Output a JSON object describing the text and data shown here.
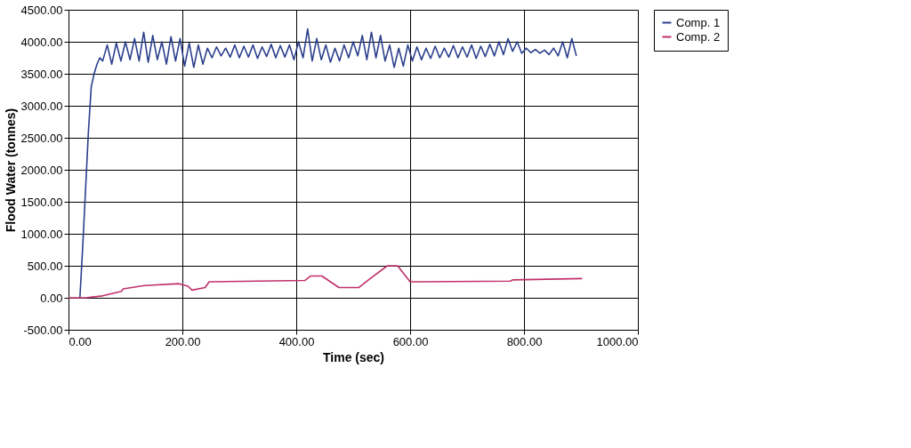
{
  "chart_data": {
    "type": "line",
    "xlabel": "Time (sec)",
    "ylabel": "Flood Water (tonnes)",
    "xlim": [
      0,
      1000
    ],
    "ylim": [
      -500,
      4500
    ],
    "xticks": [
      {
        "value": 0,
        "label": "0.00"
      },
      {
        "value": 200,
        "label": "200.00"
      },
      {
        "value": 400,
        "label": "400.00"
      },
      {
        "value": 600,
        "label": "600.00"
      },
      {
        "value": 800,
        "label": "800.00"
      },
      {
        "value": 1000,
        "label": "1000.00"
      }
    ],
    "yticks": [
      {
        "value": -500,
        "label": "-500.00"
      },
      {
        "value": 0,
        "label": "0.00"
      },
      {
        "value": 500,
        "label": "500.00"
      },
      {
        "value": 1000,
        "label": "1000.00"
      },
      {
        "value": 1500,
        "label": "1500.00"
      },
      {
        "value": 2000,
        "label": "2000.00"
      },
      {
        "value": 2500,
        "label": "2500.00"
      },
      {
        "value": 3000,
        "label": "3000.00"
      },
      {
        "value": 3500,
        "label": "3500.00"
      },
      {
        "value": 4000,
        "label": "4000.00"
      },
      {
        "value": 4500,
        "label": "4500.00"
      }
    ],
    "grid": true,
    "legend": "right",
    "marker": "none",
    "line_style": "solid",
    "series": [
      {
        "name": "Comp. 1",
        "color": "#2b3f8c",
        "x": [
          20,
          25,
          30,
          35,
          40,
          45,
          50,
          55,
          60,
          68,
          76,
          84,
          92,
          100,
          108,
          116,
          124,
          132,
          140,
          148,
          156,
          164,
          172,
          180,
          188,
          196,
          204,
          212,
          220,
          228,
          236,
          244,
          252,
          260,
          268,
          276,
          284,
          292,
          300,
          308,
          316,
          324,
          332,
          340,
          348,
          356,
          364,
          372,
          380,
          388,
          396,
          404,
          412,
          420,
          428,
          436,
          444,
          452,
          460,
          468,
          476,
          484,
          492,
          500,
          508,
          516,
          524,
          532,
          540,
          548,
          556,
          564,
          572,
          580,
          588,
          596,
          604,
          612,
          620,
          628,
          636,
          644,
          652,
          660,
          668,
          676,
          684,
          692,
          700,
          708,
          716,
          724,
          732,
          740,
          748,
          756,
          764,
          772,
          780,
          788,
          796,
          804,
          812,
          820,
          828,
          836,
          844,
          852,
          860,
          868,
          876,
          884,
          892
        ],
        "values": [
          0,
          800,
          1700,
          2600,
          3300,
          3500,
          3650,
          3750,
          3700,
          3950,
          3650,
          3980,
          3700,
          4000,
          3720,
          4050,
          3700,
          4150,
          3680,
          4100,
          3720,
          4000,
          3650,
          4080,
          3700,
          4050,
          3620,
          3980,
          3600,
          3950,
          3650,
          3900,
          3750,
          3920,
          3780,
          3900,
          3760,
          3950,
          3750,
          3930,
          3760,
          3950,
          3740,
          3920,
          3770,
          3960,
          3750,
          3940,
          3760,
          3950,
          3720,
          4000,
          3750,
          4200,
          3700,
          4050,
          3720,
          3950,
          3680,
          3900,
          3700,
          3950,
          3750,
          4000,
          3780,
          4100,
          3720,
          4150,
          3750,
          4100,
          3700,
          3950,
          3600,
          3900,
          3620,
          3950,
          3700,
          3920,
          3720,
          3900,
          3740,
          3930,
          3750,
          3900,
          3760,
          3940,
          3750,
          3920,
          3760,
          3950,
          3740,
          3930,
          3770,
          3960,
          3780,
          4000,
          3800,
          4050,
          3850,
          4000,
          3820,
          3900,
          3830,
          3880,
          3820,
          3870,
          3800,
          3900,
          3780,
          4000,
          3750,
          4050,
          3780
        ]
      },
      {
        "name": "Comp. 2",
        "color": "#c0306a",
        "x": [
          0,
          30,
          60,
          93,
          96,
          133,
          194,
          210,
          217,
          240,
          247,
          415,
          425,
          445,
          475,
          510,
          530,
          560,
          578,
          600,
          618,
          776,
          780,
          902
        ],
        "values": [
          0,
          0,
          30,
          100,
          140,
          190,
          220,
          180,
          120,
          160,
          250,
          270,
          340,
          340,
          160,
          160,
          300,
          500,
          500,
          250,
          250,
          260,
          280,
          300
        ]
      }
    ]
  }
}
